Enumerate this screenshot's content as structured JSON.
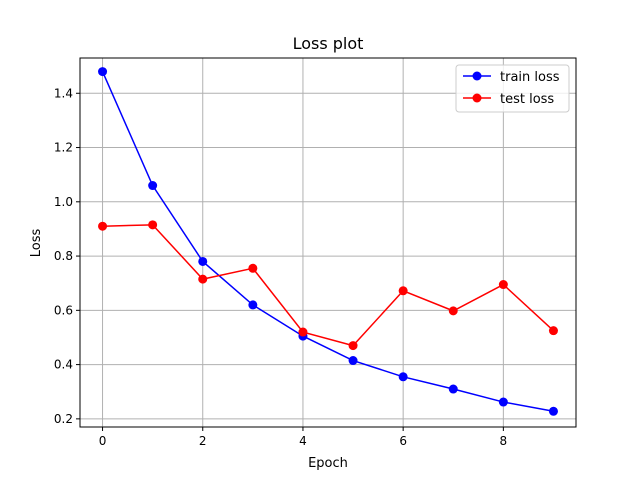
{
  "chart_data": {
    "type": "line",
    "title": "Loss plot",
    "xlabel": "Epoch",
    "ylabel": "Loss",
    "xlim": [
      -0.45,
      9.45
    ],
    "ylim": [
      0.17,
      1.53
    ],
    "xticks": [
      0,
      2,
      4,
      6,
      8
    ],
    "yticks": [
      0.2,
      0.4,
      0.6,
      0.8,
      1.0,
      1.2,
      1.4
    ],
    "xtick_labels": [
      "0",
      "2",
      "4",
      "6",
      "8"
    ],
    "ytick_labels": [
      "0.2",
      "0.4",
      "0.6",
      "0.8",
      "1.0",
      "1.2",
      "1.4"
    ],
    "grid": true,
    "legend_position": "top-right",
    "x": [
      0,
      1,
      2,
      3,
      4,
      5,
      6,
      7,
      8,
      9
    ],
    "series": [
      {
        "name": "train loss",
        "color": "#0000ff",
        "values": [
          1.48,
          1.06,
          0.78,
          0.62,
          0.505,
          0.415,
          0.355,
          0.31,
          0.262,
          0.228
        ]
      },
      {
        "name": "test loss",
        "color": "#ff0000",
        "values": [
          0.91,
          0.915,
          0.715,
          0.755,
          0.52,
          0.47,
          0.672,
          0.598,
          0.695,
          0.525
        ]
      }
    ]
  }
}
